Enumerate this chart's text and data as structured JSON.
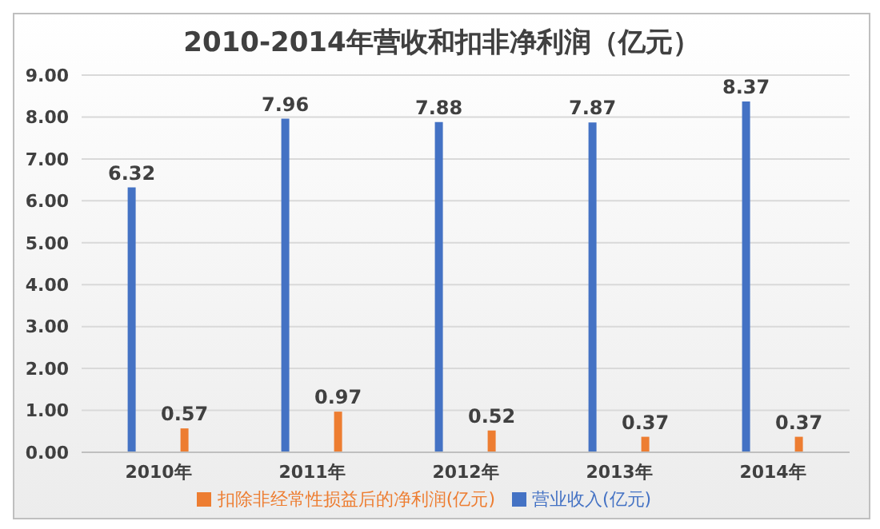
{
  "chart_data": {
    "type": "bar",
    "title": "2010-2014年营收和扣非净利润（亿元）",
    "categories": [
      "2010年",
      "2011年",
      "2012年",
      "2013年",
      "2014年"
    ],
    "series": [
      {
        "name": "营业收入(亿元)",
        "color": "#4472c4",
        "values": [
          6.32,
          7.96,
          7.88,
          7.87,
          8.37
        ]
      },
      {
        "name": "扣除非经常性损益后的净利润(亿元)",
        "color": "#ed7d31",
        "values": [
          0.57,
          0.97,
          0.52,
          0.37,
          0.37
        ]
      }
    ],
    "ylim": [
      0,
      9
    ],
    "yticks": [
      {
        "value": 0,
        "label": "0.00"
      },
      {
        "value": 1,
        "label": "1.00"
      },
      {
        "value": 2,
        "label": "2.00"
      },
      {
        "value": 3,
        "label": "3.00"
      },
      {
        "value": 4,
        "label": "4.00"
      },
      {
        "value": 5,
        "label": "5.00"
      },
      {
        "value": 6,
        "label": "6.00"
      },
      {
        "value": 7,
        "label": "7.00"
      },
      {
        "value": 8,
        "label": "8.00"
      },
      {
        "value": 9,
        "label": "9.00"
      }
    ],
    "grid": "y",
    "legend": "bottom",
    "data_labels": true
  }
}
